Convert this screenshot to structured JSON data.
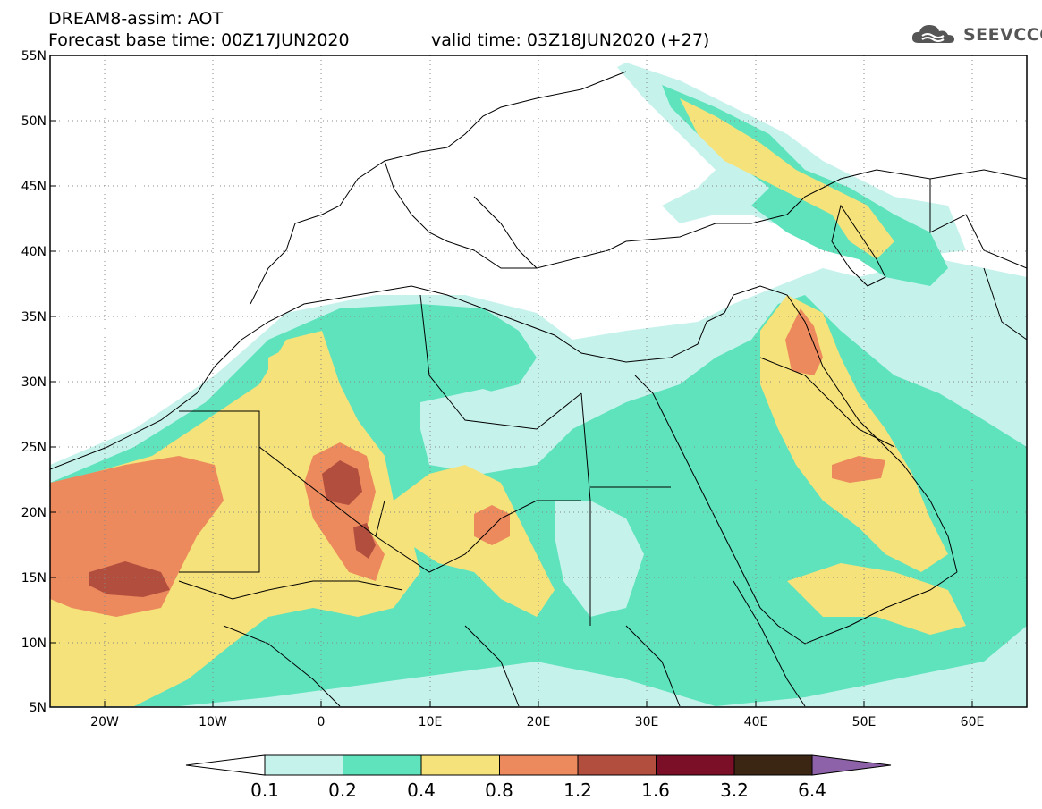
{
  "header": {
    "line1": "DREAM8-assim: AOT",
    "line2": "Forecast base time: 00Z17JUN2020",
    "line3": "valid time: 03Z18JUN2020 (+27)"
  },
  "logo": {
    "text": "SEEVCCC",
    "icon": "cloud-icon"
  },
  "axes": {
    "lat_labels": [
      "55N",
      "50N",
      "45N",
      "40N",
      "35N",
      "30N",
      "25N",
      "20N",
      "15N",
      "10N",
      "5N"
    ],
    "lon_labels": [
      "20W",
      "10W",
      "0",
      "10E",
      "20E",
      "30E",
      "40E",
      "50E",
      "60E"
    ],
    "lon_range": [
      -25,
      65
    ],
    "lat_range": [
      5,
      55
    ],
    "grid": "dotted"
  },
  "colorbar": {
    "levels": [
      "0.1",
      "0.2",
      "0.4",
      "0.8",
      "1.2",
      "1.6",
      "3.2",
      "6.4"
    ],
    "colors": [
      "#c6f2ec",
      "#5ee3bd",
      "#f6e27a",
      "#ec8a5e",
      "#b24e3e",
      "#7a0f27",
      "#3b2613",
      "#8d62a8"
    ]
  },
  "map_colors": {
    "c1": "#c6f2ec",
    "c2": "#5ee3bd",
    "c3": "#f6e27a",
    "c4": "#ec8a5e",
    "c5": "#b24e3e"
  }
}
